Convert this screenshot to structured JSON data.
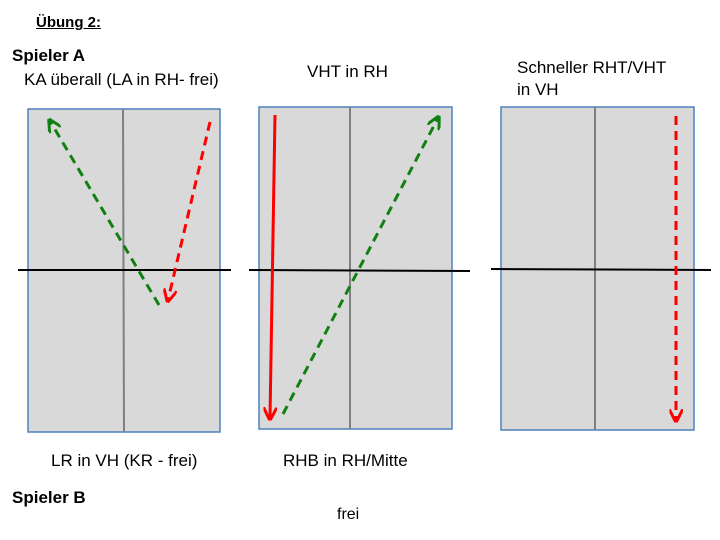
{
  "title": "Übung 2:",
  "player_a": "Spieler A",
  "player_b": "Spieler B",
  "colors": {
    "panel_fill": "#d9d9d9",
    "panel_border": "#4f81bd",
    "center_line": "#808080",
    "net_line": "#000000",
    "red": "#ff0000",
    "green": "#118011"
  },
  "panels": [
    {
      "top_caption": "KA überall (LA in RH- frei)",
      "bottom_caption": "LR in VH (KR - frei)"
    },
    {
      "top_caption": "VHT in RH",
      "bottom_caption": "RHB in RH/Mitte"
    },
    {
      "top_caption_line1": "Schneller RHT/VHT",
      "top_caption_line2": "in VH",
      "bottom_caption": "frei"
    }
  ]
}
